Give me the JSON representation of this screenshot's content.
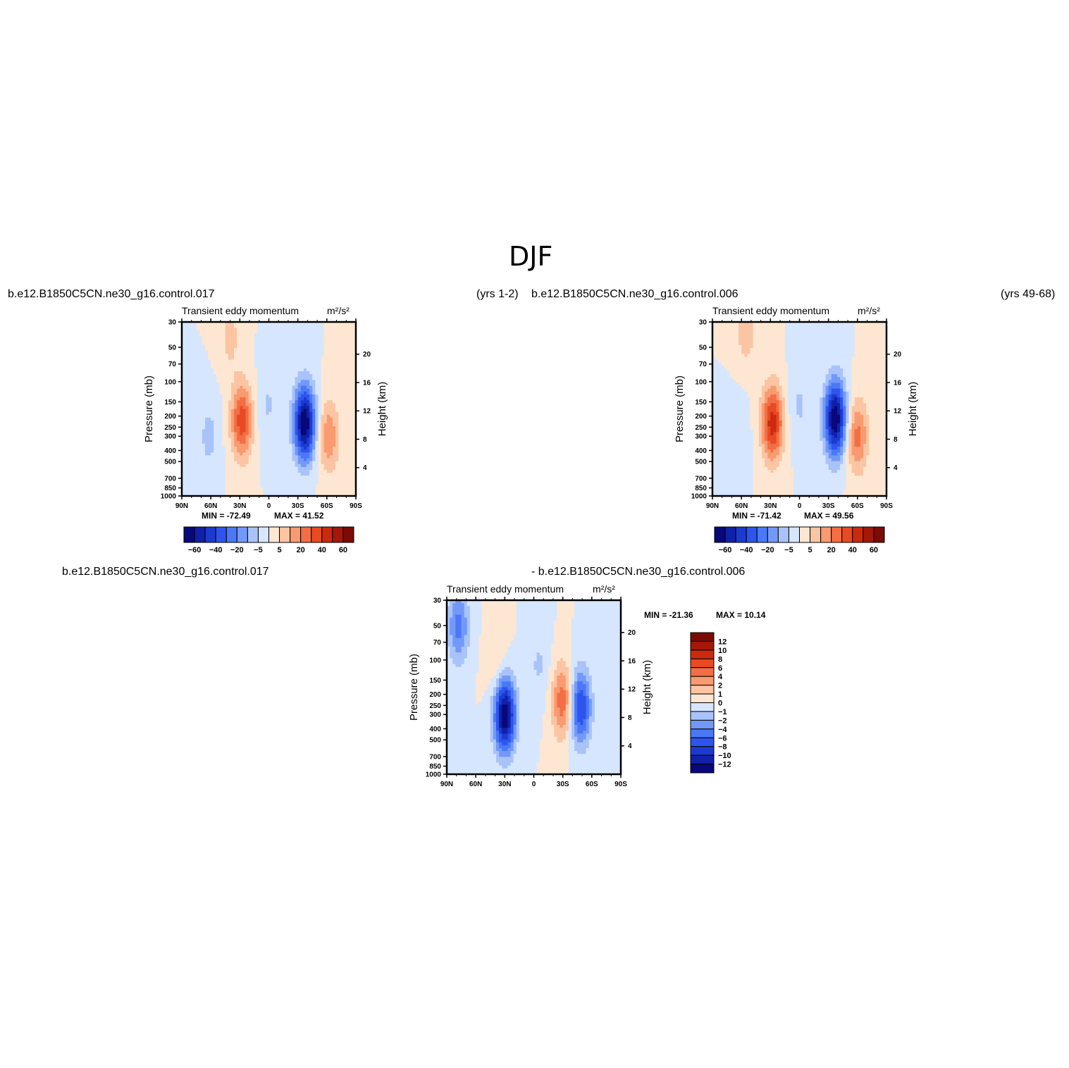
{
  "title": "DJF",
  "labels": {
    "top_left_case": "b.e12.B1850C5CN.ne30_g16.control.017",
    "top_left_years": "(yrs 1-2)",
    "top_right_case": "b.e12.B1850C5CN.ne30_g16.control.006",
    "top_right_years": "(yrs 49-68)",
    "bottom_case_a": "b.e12.B1850C5CN.ne30_g16.control.017",
    "bottom_case_b": "- b.e12.B1850C5CN.ne30_g16.control.006"
  },
  "colors": {
    "blue_scale": [
      "#08087a",
      "#1020a8",
      "#1c3ad0",
      "#2d55ee",
      "#4a78f7",
      "#7399f8",
      "#a9c3fa",
      "#d6e6fe"
    ],
    "red_scale": [
      "#fde7d2",
      "#fbc5a3",
      "#f99a70",
      "#f36e45",
      "#e84a22",
      "#cc2a0e",
      "#a4180a",
      "#7c0b05"
    ]
  },
  "chart_data": [
    {
      "type": "contour",
      "title": "Transient eddy momentum",
      "units": "m²/s²",
      "xlabel": "",
      "ylabel": "Pressure (mb)",
      "ylabel_right": "Height (km)",
      "x_ticks": [
        "90N",
        "60N",
        "30N",
        "0",
        "30S",
        "60S",
        "90S"
      ],
      "x_values": [
        90,
        60,
        30,
        0,
        -30,
        -60,
        -90
      ],
      "y_ticks": [
        30,
        50,
        70,
        100,
        150,
        200,
        250,
        300,
        400,
        500,
        700,
        850,
        1000
      ],
      "ylim": [
        1000,
        30
      ],
      "y_right_ticks": [
        20,
        16,
        12,
        8,
        4
      ],
      "min_label": "MIN = -72.49",
      "max_label": "MAX =  41.52",
      "min": -72.49,
      "max": 41.52,
      "colorbar_orientation": "horizontal",
      "colorbar_tick_labels": [
        "-60",
        "-40",
        "-20",
        "-5",
        "5",
        "20",
        "40",
        "60"
      ],
      "features": [
        {
          "sign": "negative",
          "lat": -37,
          "pressure": 230,
          "peak": -72.49
        },
        {
          "sign": "positive",
          "lat": 28,
          "pressure": 220,
          "peak": 41.52
        },
        {
          "sign": "positive",
          "lat": -62,
          "pressure": 300,
          "peak": 25
        },
        {
          "sign": "negative",
          "lat": 62,
          "pressure": 300,
          "peak": -12
        },
        {
          "sign": "negative",
          "lat": 1,
          "pressure": 160,
          "peak": -10
        },
        {
          "sign": "positive",
          "lat": 40,
          "pressure": 40,
          "peak": 12
        }
      ]
    },
    {
      "type": "contour",
      "title": "Transient eddy momentum",
      "units": "m²/s²",
      "xlabel": "",
      "ylabel": "Pressure (mb)",
      "ylabel_right": "Height (km)",
      "x_ticks": [
        "90N",
        "60N",
        "30N",
        "0",
        "30S",
        "60S",
        "90S"
      ],
      "x_values": [
        90,
        60,
        30,
        0,
        -30,
        -60,
        -90
      ],
      "y_ticks": [
        30,
        50,
        70,
        100,
        150,
        200,
        250,
        300,
        400,
        500,
        700,
        850,
        1000
      ],
      "ylim": [
        1000,
        30
      ],
      "y_right_ticks": [
        20,
        16,
        12,
        8,
        4
      ],
      "min_label": "MIN = -71.42",
      "max_label": "MAX =  49.56",
      "min": -71.42,
      "max": 49.56,
      "colorbar_orientation": "horizontal",
      "colorbar_tick_labels": [
        "-60",
        "-40",
        "-20",
        "-5",
        "5",
        "20",
        "40",
        "60"
      ],
      "features": [
        {
          "sign": "negative",
          "lat": -37,
          "pressure": 210,
          "peak": -71.42
        },
        {
          "sign": "positive",
          "lat": 28,
          "pressure": 230,
          "peak": 49.56
        },
        {
          "sign": "positive",
          "lat": -60,
          "pressure": 300,
          "peak": 30
        },
        {
          "sign": "negative",
          "lat": 65,
          "pressure": 300,
          "peak": -8
        },
        {
          "sign": "negative",
          "lat": 0,
          "pressure": 160,
          "peak": -10
        },
        {
          "sign": "positive",
          "lat": 55,
          "pressure": 35,
          "peak": 15
        }
      ]
    },
    {
      "type": "contour",
      "title": "Transient eddy momentum",
      "units": "m²/s²",
      "xlabel": "",
      "ylabel": "Pressure (mb)",
      "ylabel_right": "Height (km)",
      "x_ticks": [
        "90N",
        "60N",
        "30N",
        "0",
        "30S",
        "60S",
        "90S"
      ],
      "x_values": [
        90,
        60,
        30,
        0,
        -30,
        -60,
        -90
      ],
      "y_ticks": [
        30,
        50,
        70,
        100,
        150,
        200,
        250,
        300,
        400,
        500,
        700,
        850,
        1000
      ],
      "ylim": [
        1000,
        30
      ],
      "y_right_ticks": [
        20,
        16,
        12,
        8,
        4
      ],
      "min_label": "MIN = -21.36",
      "max_label": "MAX =  10.14",
      "min": -21.36,
      "max": 10.14,
      "colorbar_orientation": "vertical",
      "colorbar_tick_labels": [
        "12",
        "10",
        "8",
        "6",
        "4",
        "2",
        "1",
        "0",
        "-1",
        "-2",
        "-4",
        "-6",
        "-8",
        "-10",
        "-12"
      ],
      "features": [
        {
          "sign": "negative",
          "lat": 30,
          "pressure": 300,
          "peak": -21.36
        },
        {
          "sign": "negative",
          "lat": -48,
          "pressure": 260,
          "peak": -14
        },
        {
          "sign": "negative",
          "lat": 78,
          "pressure": 50,
          "peak": -9
        },
        {
          "sign": "positive",
          "lat": -30,
          "pressure": 230,
          "peak": 10.14
        },
        {
          "sign": "positive",
          "lat": 38,
          "pressure": 110,
          "peak": 3
        },
        {
          "sign": "negative",
          "lat": -5,
          "pressure": 110,
          "peak": -3
        }
      ]
    }
  ]
}
